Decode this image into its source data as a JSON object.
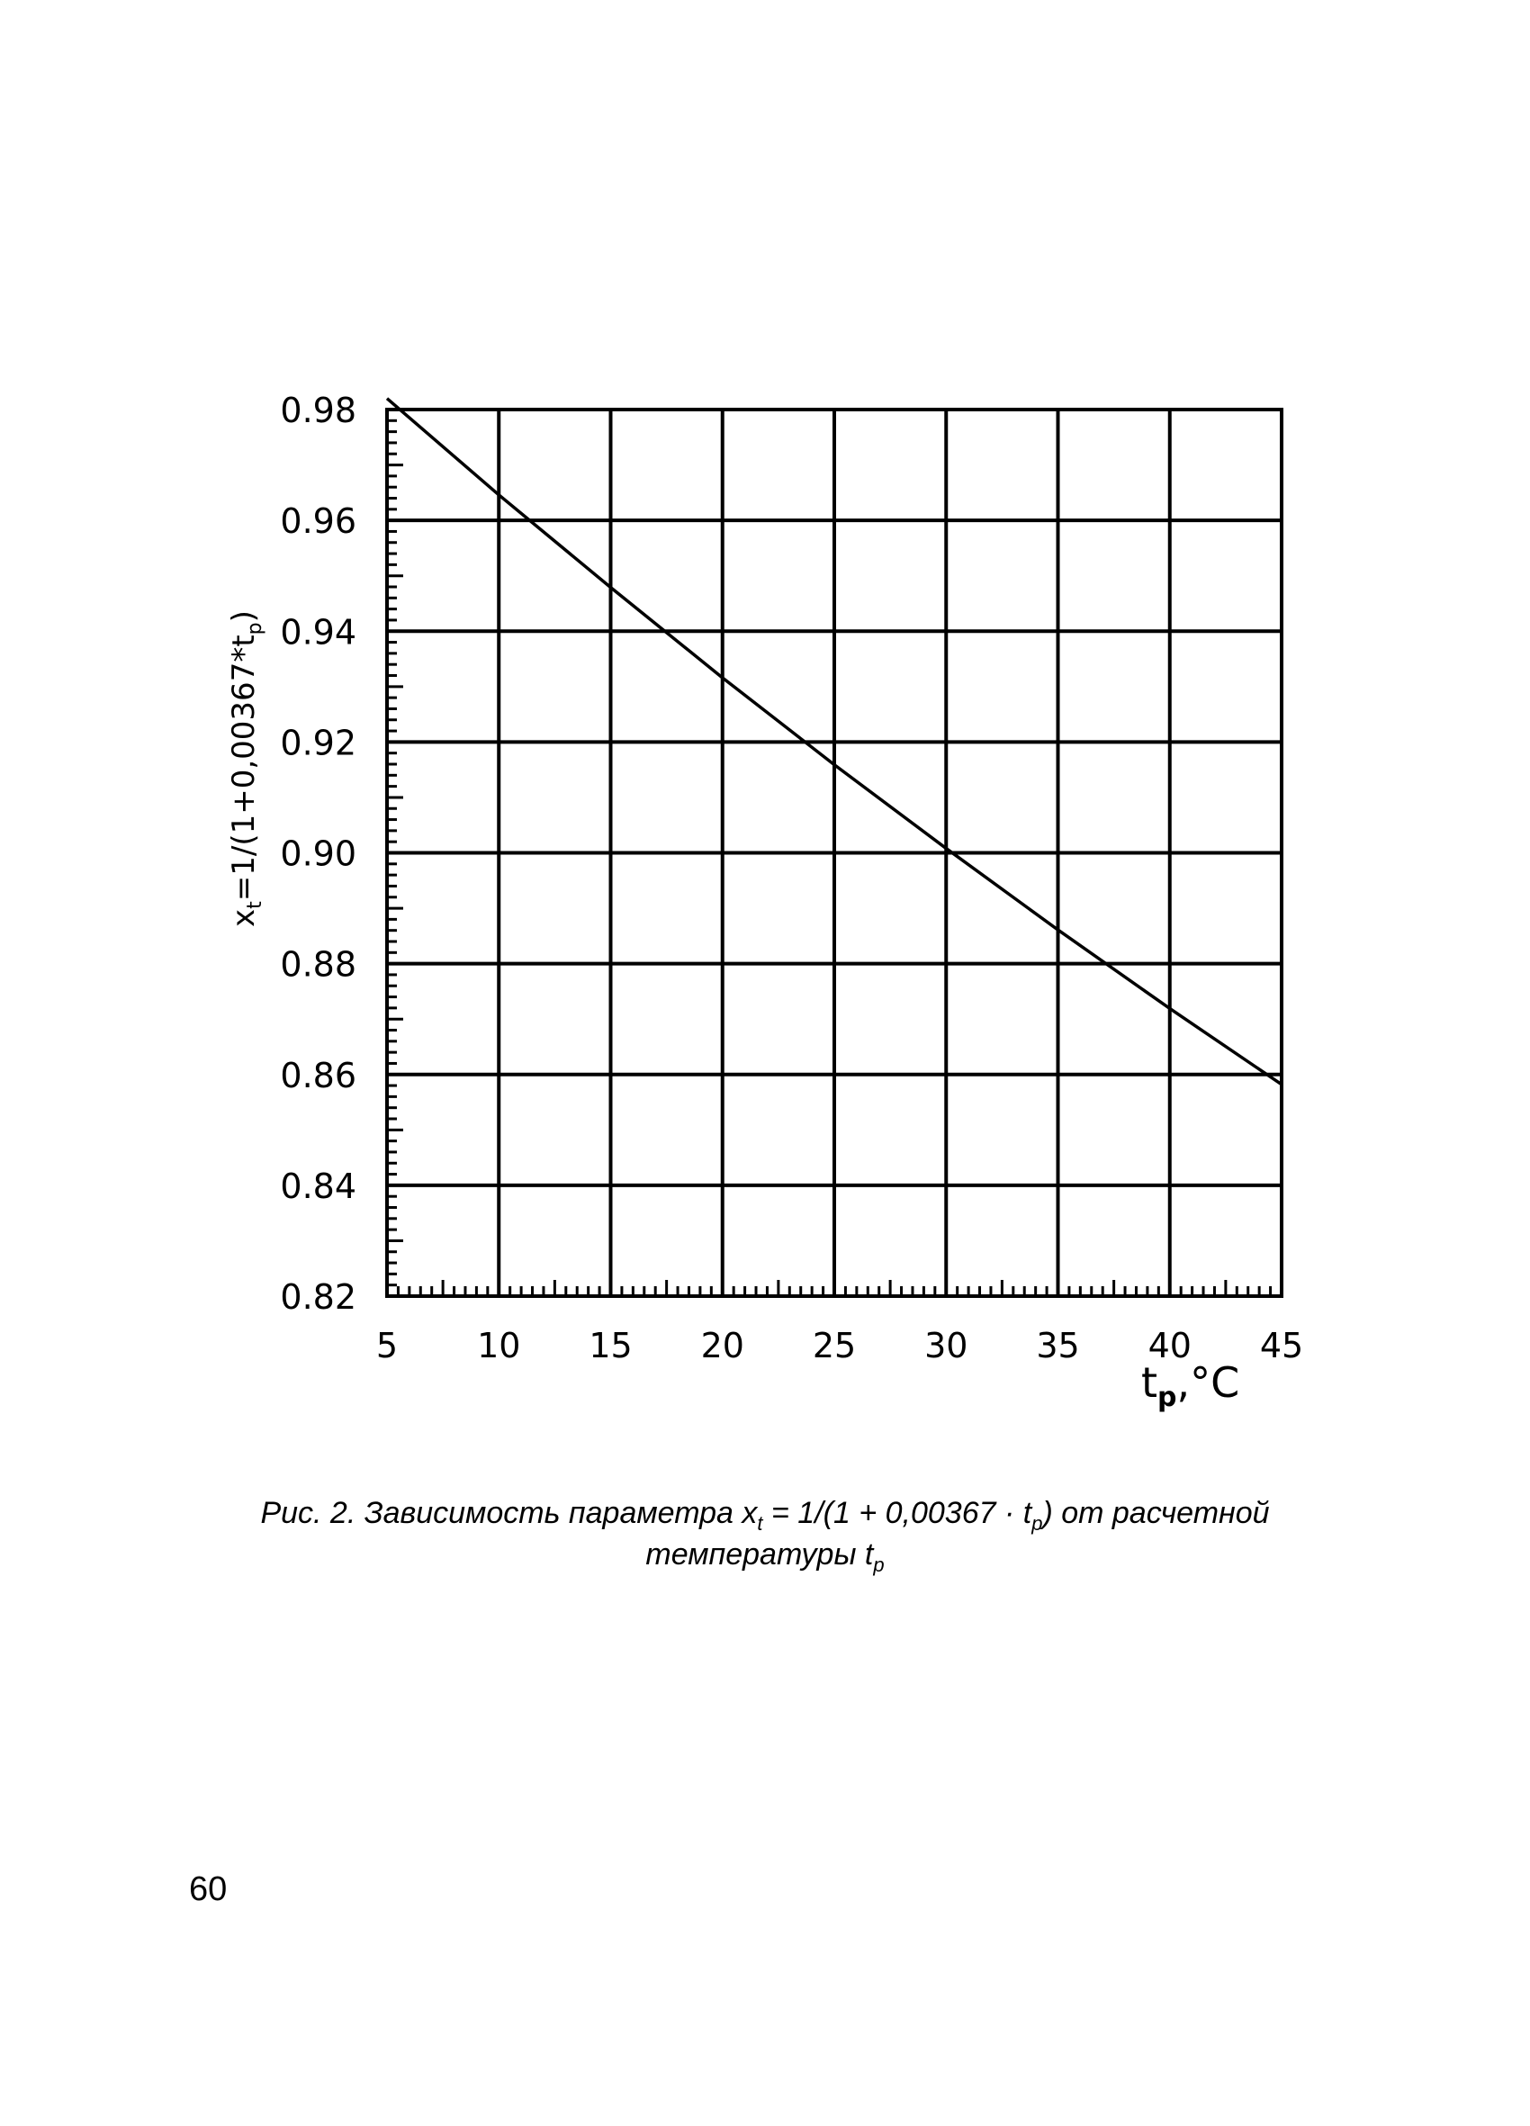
{
  "chart_data": {
    "type": "line",
    "x": [
      5,
      10,
      15,
      20,
      25,
      30,
      35,
      40,
      45
    ],
    "series": [
      {
        "values": [
          0.982,
          0.9646,
          0.9479,
          0.9316,
          0.9159,
          0.9008,
          0.8861,
          0.8719,
          0.8582
        ]
      }
    ],
    "xlim": [
      5,
      45
    ],
    "ylim": [
      0.82,
      0.98
    ],
    "x_ticks": [
      5,
      10,
      15,
      20,
      25,
      30,
      35,
      40,
      45
    ],
    "y_ticks": [
      0.82,
      0.84,
      0.86,
      0.88,
      0.9,
      0.92,
      0.94,
      0.96,
      0.98
    ],
    "x_tick_labels": [
      "5",
      "10",
      "15",
      "20",
      "25",
      "30",
      "35",
      "40",
      "45"
    ],
    "y_tick_labels": [
      "0.82",
      "0.84",
      "0.86",
      "0.88",
      "0.90",
      "0.92",
      "0.94",
      "0.96",
      "0.98"
    ],
    "xlabel": {
      "main": "t",
      "sub": "p",
      "rest": ",°C"
    },
    "ylabel": {
      "main": "x",
      "sub1": "t",
      "mid": "=1/(1+0,00367*t",
      "sub2": "p",
      "end": ")"
    },
    "grid": true,
    "minor_ticks": true
  },
  "caption": {
    "line1_a": "Рис. 2. Зависимость параметра x",
    "line1_sub1": "t",
    "line1_b": " = 1/(1 + 0,00367 · t",
    "line1_sub2": "p",
    "line1_c": ") от расчетной",
    "line2_a": "температуры t",
    "line2_sub": "p"
  },
  "page_number": "60"
}
